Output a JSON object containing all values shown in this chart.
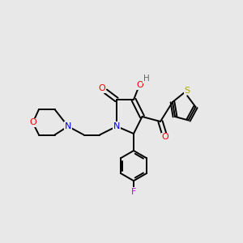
{
  "background_color": "#e8e8e8",
  "atom_colors": {
    "C": "#000000",
    "N": "#0000ee",
    "O": "#ee0000",
    "S": "#aaaa00",
    "F": "#cc00cc",
    "H": "#666666"
  },
  "figsize": [
    3.0,
    3.0
  ],
  "dpi": 100,
  "bond_lw": 1.4
}
